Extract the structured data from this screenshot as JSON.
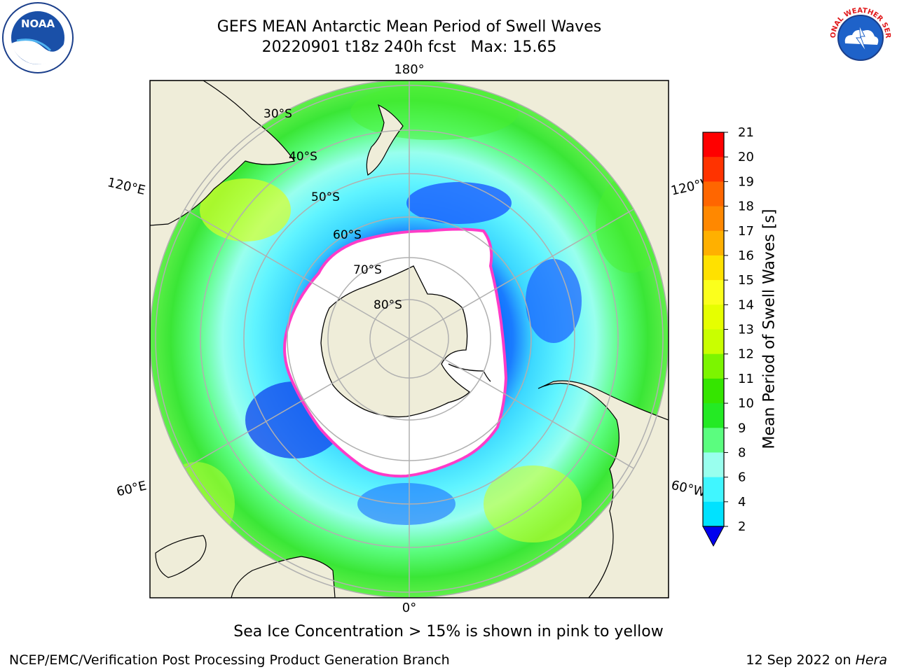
{
  "title": {
    "line1": "GEFS MEAN Antarctic Mean Period of Swell Waves",
    "line2": "20220901 t18z 240h fcst   Max: 15.65"
  },
  "map": {
    "projection": "south-polar-stereographic",
    "longitude_labels": {
      "top": "180°",
      "bottom": "0°",
      "upper_left": "120°E",
      "upper_right": "120°W",
      "lower_left": "60°E",
      "lower_right": "60°W"
    },
    "latitude_labels": [
      "30°S",
      "40°S",
      "50°S",
      "60°S",
      "70°S",
      "80°S"
    ],
    "colors": {
      "land": "#efedd9",
      "ocean_no_data": "#ffffff",
      "gridlines": "#b0b0b0",
      "sea_ice_edge": "#ff3cc8"
    }
  },
  "colorbar": {
    "title": "Mean Period of Swell Waves [s]",
    "ticks": [
      "21",
      "20",
      "19",
      "18",
      "17",
      "16",
      "15",
      "14",
      "13",
      "12",
      "11",
      "10",
      "9",
      "8",
      "6",
      "4",
      "2"
    ],
    "colors": [
      "#ff0000",
      "#ff3300",
      "#ff6600",
      "#ff8800",
      "#ffb000",
      "#ffe100",
      "#fbff1c",
      "#e6ff00",
      "#c9ff00",
      "#7cf500",
      "#35e500",
      "#24ea24",
      "#5bfd7f",
      "#99ffee",
      "#40f6ff",
      "#00e2ff",
      "#0088ff",
      "#0000ee"
    ],
    "extend": "min"
  },
  "footer": {
    "caption": "Sea Ice Concentration > 15% is shown in pink to yellow",
    "left": "NCEP/EMC/Verification Post Processing Product Generation Branch",
    "right_date": "12 Sep 2022 on ",
    "right_machine": "Hera"
  },
  "logos": {
    "left": "NOAA",
    "right": "NATIONAL WEATHER SERVICE"
  }
}
